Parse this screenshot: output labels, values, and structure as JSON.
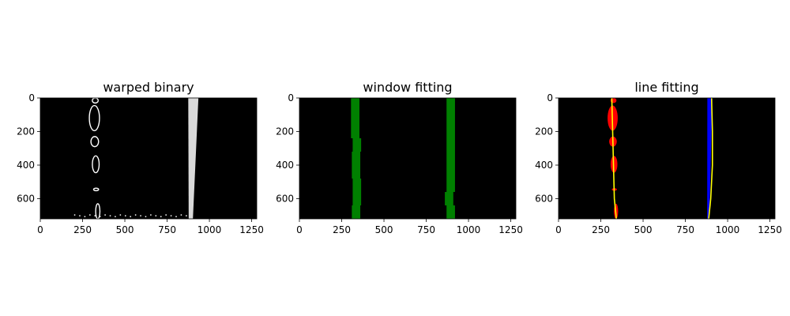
{
  "chart_data": [
    {
      "type": "image",
      "title": "warped binary",
      "xlim": [
        0,
        1280
      ],
      "ylim": [
        720,
        0
      ],
      "xticks": [
        0,
        250,
        500,
        750,
        1000,
        1250
      ],
      "yticks": [
        0,
        200,
        400,
        600
      ],
      "background": "#000000",
      "layers": [
        {
          "kind": "binary-pixels",
          "color": "#ffffff",
          "left_lane_blobs": [
            {
              "x": 325,
              "y": 15,
              "w": 35,
              "h": 30
            },
            {
              "x": 320,
              "y": 120,
              "w": 60,
              "h": 150
            },
            {
              "x": 322,
              "y": 260,
              "w": 45,
              "h": 60
            },
            {
              "x": 328,
              "y": 395,
              "w": 40,
              "h": 100
            },
            {
              "x": 330,
              "y": 545,
              "w": 30,
              "h": 15
            },
            {
              "x": 340,
              "y": 675,
              "w": 25,
              "h": 90
            }
          ],
          "right_lane": {
            "x_top": 905,
            "x_bottom": 890,
            "width_top": 60,
            "width_bottom": 25
          },
          "noise_row_y": 690,
          "noise_x_range": [
            200,
            880
          ]
        }
      ]
    },
    {
      "type": "image",
      "title": "window fitting",
      "xlim": [
        0,
        1280
      ],
      "ylim": [
        720,
        0
      ],
      "xticks": [
        0,
        250,
        500,
        750,
        1000,
        1250
      ],
      "yticks": [
        0,
        200,
        400,
        600
      ],
      "background": "#000000",
      "layers": [
        {
          "kind": "windows",
          "color": "#008000",
          "window_height": 80,
          "window_width": 50,
          "left_centers": [
            330,
            330,
            330,
            340,
            335,
            335,
            340,
            340,
            335
          ],
          "right_centers": [
            895,
            895,
            895,
            895,
            895,
            895,
            895,
            885,
            895
          ]
        }
      ]
    },
    {
      "type": "image",
      "title": "line fitting",
      "xlim": [
        0,
        1280
      ],
      "ylim": [
        720,
        0
      ],
      "xticks": [
        0,
        250,
        500,
        750,
        1000,
        1250
      ],
      "yticks": [
        0,
        200,
        400,
        600
      ],
      "background": "#000000",
      "layers": [
        {
          "kind": "lane-pixels",
          "left_color": "#ff0000",
          "right_color": "#0000ff",
          "left_blobs": [
            {
              "x": 325,
              "y": 15,
              "w": 35,
              "h": 30
            },
            {
              "x": 320,
              "y": 120,
              "w": 60,
              "h": 150
            },
            {
              "x": 322,
              "y": 260,
              "w": 45,
              "h": 60
            },
            {
              "x": 328,
              "y": 395,
              "w": 40,
              "h": 100
            },
            {
              "x": 330,
              "y": 545,
              "w": 30,
              "h": 15
            },
            {
              "x": 340,
              "y": 675,
              "w": 25,
              "h": 90
            }
          ],
          "right_lane": {
            "x_top": 895,
            "x_bottom": 885,
            "width_top": 30,
            "width_bottom": 12
          }
        },
        {
          "kind": "fit-lines",
          "color": "#ffff00",
          "left_fit": [
            [
              315,
              0
            ],
            [
              320,
              200
            ],
            [
              325,
              400
            ],
            [
              330,
              600
            ],
            [
              342,
              720
            ]
          ],
          "right_fit": [
            [
              905,
              0
            ],
            [
              910,
              200
            ],
            [
              910,
              400
            ],
            [
              900,
              600
            ],
            [
              888,
              720
            ]
          ]
        }
      ]
    }
  ]
}
